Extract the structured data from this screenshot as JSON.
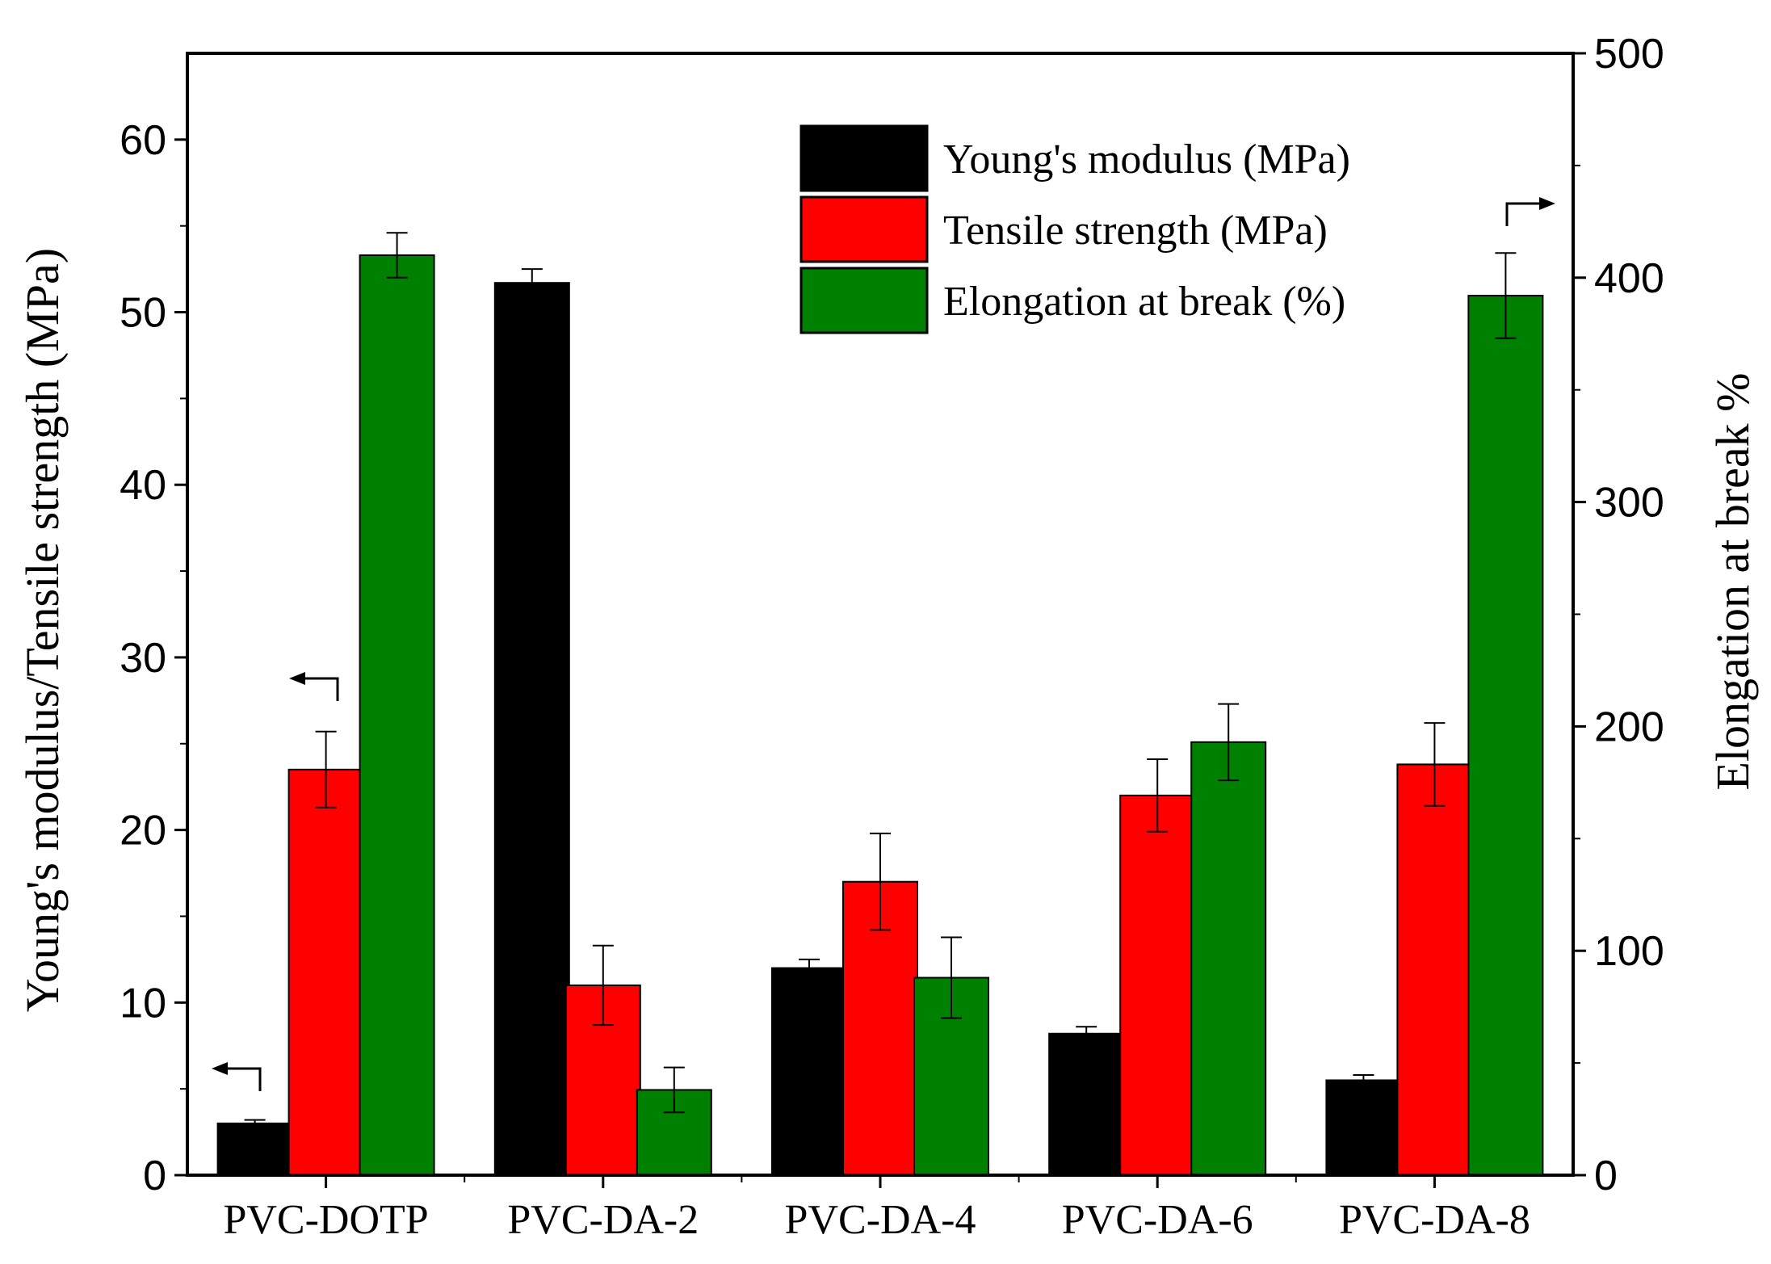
{
  "chart_data": {
    "type": "bar",
    "categories": [
      "PVC-DOTP",
      "PVC-DA-2",
      "PVC-DA-4",
      "PVC-DA-6",
      "PVC-DA-8"
    ],
    "series": [
      {
        "name": "Young's modulus (MPa)",
        "color": "#000000",
        "axis": "left",
        "values": [
          3.0,
          51.7,
          12.0,
          8.2,
          5.5
        ],
        "errors": [
          0.2,
          0.8,
          0.5,
          0.4,
          0.3
        ]
      },
      {
        "name": "Tensile strength (MPa)",
        "color": "#ff0000",
        "axis": "left",
        "values": [
          23.5,
          11.0,
          17.0,
          22.0,
          23.8
        ],
        "errors": [
          2.2,
          2.3,
          2.8,
          2.1,
          2.4
        ]
      },
      {
        "name": "Elongation at break (%)",
        "color": "#008000",
        "axis": "right",
        "values": [
          410,
          38,
          88,
          193,
          392
        ],
        "errors": [
          10,
          10,
          18,
          17,
          19
        ]
      }
    ],
    "left_axis": {
      "label": "Young's modulus/Tensile strength (MPa)",
      "ylim": [
        0,
        65
      ],
      "ticks": [
        "0",
        "10",
        "20",
        "30",
        "40",
        "50",
        "60"
      ]
    },
    "right_axis": {
      "label": "Elongation at break %",
      "ylim": [
        0,
        500
      ],
      "ticks": [
        "0",
        "100",
        "200",
        "300",
        "400",
        "500"
      ]
    },
    "legend_position": "top-right",
    "grid": false
  }
}
